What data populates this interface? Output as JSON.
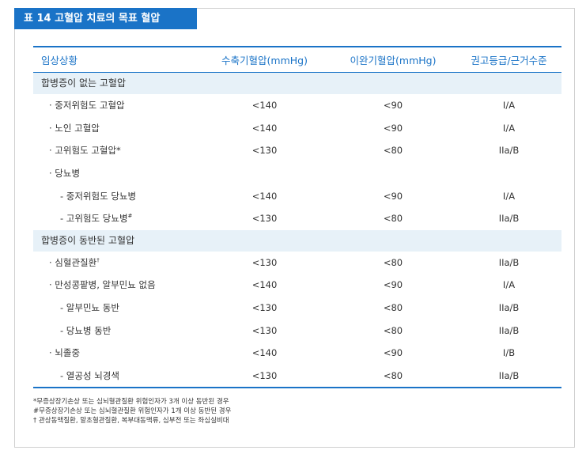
{
  "title": "표 14  고혈압 치료의 목표 혈압",
  "columns": [
    "임상상황",
    "수축기혈압(mmHg)",
    "이완기혈압(mmHg)",
    "권고등급/근거수준"
  ],
  "sections": [
    {
      "label": "합병증이 없는 고혈압",
      "rows": [
        {
          "label": "· 중저위험도 고혈압",
          "sup": "",
          "sbp": "<140",
          "dbp": "<90",
          "grade": "I/A",
          "level": 1
        },
        {
          "label": "· 노인 고혈압",
          "sup": "",
          "sbp": "<140",
          "dbp": "<90",
          "grade": "I/A",
          "level": 1
        },
        {
          "label": "· 고위험도 고혈압*",
          "sup": "",
          "sbp": "<130",
          "dbp": "<80",
          "grade": "IIa/B",
          "level": 1
        },
        {
          "label": "· 당뇨병",
          "sup": "",
          "sbp": "",
          "dbp": "",
          "grade": "",
          "level": 1
        },
        {
          "label": "- 중저위험도 당뇨병",
          "sup": "",
          "sbp": "<140",
          "dbp": "<90",
          "grade": "I/A",
          "level": 2
        },
        {
          "label": "- 고위험도 당뇨병",
          "sup": "#",
          "sbp": "<130",
          "dbp": "<80",
          "grade": "IIa/B",
          "level": 2
        }
      ]
    },
    {
      "label": "합병증이 동반된 고혈압",
      "rows": [
        {
          "label": "· 심혈관질환",
          "sup": "†",
          "sbp": "<130",
          "dbp": "<80",
          "grade": "IIa/B",
          "level": 1
        },
        {
          "label": "· 만성콩팥병, 알부민뇨 없음",
          "sup": "",
          "sbp": "<140",
          "dbp": "<90",
          "grade": "I/A",
          "level": 1
        },
        {
          "label": "- 알부민뇨 동반",
          "sup": "",
          "sbp": "<130",
          "dbp": "<80",
          "grade": "IIa/B",
          "level": 2
        },
        {
          "label": "- 당뇨병 동반",
          "sup": "",
          "sbp": "<130",
          "dbp": "<80",
          "grade": "IIa/B",
          "level": 2
        },
        {
          "label": "· 뇌졸중",
          "sup": "",
          "sbp": "<140",
          "dbp": "<90",
          "grade": "I/B",
          "level": 1
        },
        {
          "label": "- 열공성 뇌경색",
          "sup": "",
          "sbp": "<130",
          "dbp": "<80",
          "grade": "IIa/B",
          "level": 2
        }
      ]
    }
  ],
  "footnotes": [
    "*무증상장기손상 또는 심뇌혈관질환 위험인자가 3개 이상 동반된 경우",
    "#무증상장기손상 또는 심뇌혈관질환 위험인자가 1개 이상 동반된 경우",
    "† 관상동맥질환, 말초혈관질환, 복부대동맥류, 심부전 또는 좌심실비대"
  ],
  "colors": {
    "accent": "#1a73c7",
    "section_bg": "#e7f1f8"
  }
}
